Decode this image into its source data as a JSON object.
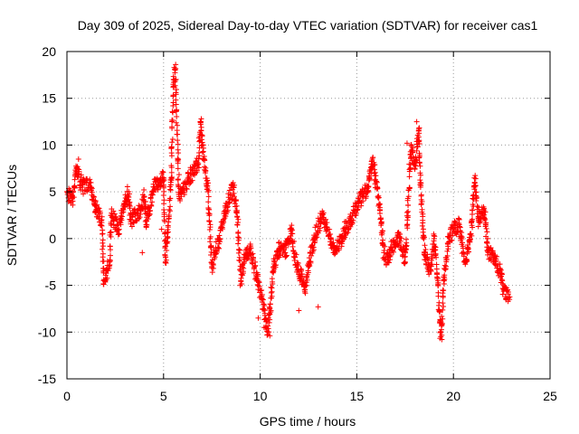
{
  "chart_data": {
    "type": "scatter",
    "title": "Day 309 of 2025, Sidereal Day-to-day VTEC variation (SDTVAR) for receiver cas1",
    "xlabel": "GPS time / hours",
    "ylabel": "SDTVAR / TECUs",
    "xlim": [
      0,
      25
    ],
    "ylim": [
      -15,
      20
    ],
    "x_ticks": [
      0,
      5,
      10,
      15,
      20,
      25
    ],
    "y_ticks": [
      -15,
      -10,
      -5,
      0,
      5,
      10,
      15,
      20
    ],
    "grid": true,
    "marker": "plus",
    "series_color": "#ff0000",
    "trend_points": [
      [
        0.0,
        5.0
      ],
      [
        0.3,
        4.0
      ],
      [
        0.5,
        7.5
      ],
      [
        0.8,
        5.5
      ],
      [
        1.2,
        6.0
      ],
      [
        1.5,
        3.0
      ],
      [
        1.8,
        2.0
      ],
      [
        1.9,
        -4.5
      ],
      [
        2.2,
        -2.5
      ],
      [
        2.3,
        2.5
      ],
      [
        2.7,
        1.0
      ],
      [
        3.0,
        4.0
      ],
      [
        3.2,
        5.0
      ],
      [
        3.3,
        2.0
      ],
      [
        3.8,
        3.0
      ],
      [
        4.0,
        4.5
      ],
      [
        4.1,
        1.5
      ],
      [
        4.5,
        5.5
      ],
      [
        5.0,
        6.5
      ],
      [
        5.1,
        -2.5
      ],
      [
        5.4,
        6.5
      ],
      [
        5.5,
        16.5
      ],
      [
        5.6,
        18.0
      ],
      [
        5.8,
        4.5
      ],
      [
        6.3,
        6.5
      ],
      [
        6.8,
        8.0
      ],
      [
        6.9,
        12.5
      ],
      [
        7.0,
        10.0
      ],
      [
        7.3,
        5.0
      ],
      [
        7.5,
        -3.0
      ],
      [
        7.7,
        -1.0
      ],
      [
        7.9,
        0.0
      ],
      [
        8.2,
        3.0
      ],
      [
        8.6,
        5.5
      ],
      [
        8.8,
        3.0
      ],
      [
        9.0,
        -4.5
      ],
      [
        9.2,
        -2.0
      ],
      [
        9.5,
        -1.0
      ],
      [
        9.8,
        -4.0
      ],
      [
        10.1,
        -6.5
      ],
      [
        10.4,
        -10.0
      ],
      [
        10.7,
        -3.0
      ],
      [
        11.0,
        -1.0
      ],
      [
        11.3,
        -1.5
      ],
      [
        11.6,
        1.0
      ],
      [
        11.8,
        -2.0
      ],
      [
        12.1,
        -4.0
      ],
      [
        12.3,
        -5.5
      ],
      [
        12.5,
        -3.0
      ],
      [
        12.8,
        0.0
      ],
      [
        13.2,
        2.5
      ],
      [
        13.5,
        1.0
      ],
      [
        13.8,
        -1.5
      ],
      [
        14.1,
        -0.5
      ],
      [
        14.4,
        1.0
      ],
      [
        14.7,
        2.0
      ],
      [
        15.0,
        3.5
      ],
      [
        15.3,
        4.5
      ],
      [
        15.6,
        5.5
      ],
      [
        15.8,
        8.5
      ],
      [
        16.0,
        6.0
      ],
      [
        16.2,
        3.0
      ],
      [
        16.4,
        -1.5
      ],
      [
        16.6,
        -2.5
      ],
      [
        16.8,
        -1.0
      ],
      [
        17.2,
        0.0
      ],
      [
        17.5,
        -2.5
      ],
      [
        17.8,
        10.0
      ],
      [
        18.0,
        7.5
      ],
      [
        18.2,
        11.5
      ],
      [
        18.3,
        5.5
      ],
      [
        18.5,
        -1.5
      ],
      [
        18.8,
        -3.5
      ],
      [
        19.0,
        0.0
      ],
      [
        19.2,
        -5.0
      ],
      [
        19.35,
        -10.5
      ],
      [
        19.5,
        -4.5
      ],
      [
        19.7,
        -0.5
      ],
      [
        20.0,
        1.0
      ],
      [
        20.3,
        1.5
      ],
      [
        20.6,
        -2.5
      ],
      [
        20.9,
        0.5
      ],
      [
        21.1,
        6.0
      ],
      [
        21.3,
        2.0
      ],
      [
        21.6,
        3.0
      ],
      [
        21.8,
        -1.5
      ],
      [
        22.1,
        -2.0
      ],
      [
        22.4,
        -3.5
      ],
      [
        22.6,
        -5.5
      ],
      [
        22.9,
        -6.5
      ]
    ]
  },
  "outliers": [
    [
      0.6,
      8.5
    ],
    [
      5.55,
      18.3
    ],
    [
      6.95,
      12.8
    ],
    [
      10.5,
      -10.4
    ],
    [
      10.2,
      -9.5
    ],
    [
      12.0,
      -7.7
    ],
    [
      17.6,
      10.2
    ],
    [
      18.1,
      12.5
    ],
    [
      19.4,
      -10.8
    ],
    [
      21.15,
      6.4
    ],
    [
      4.9,
      1.0
    ],
    [
      3.9,
      -1.5
    ],
    [
      6.6,
      6.8
    ],
    [
      9.9,
      -8.5
    ],
    [
      13.0,
      -7.3
    ]
  ]
}
